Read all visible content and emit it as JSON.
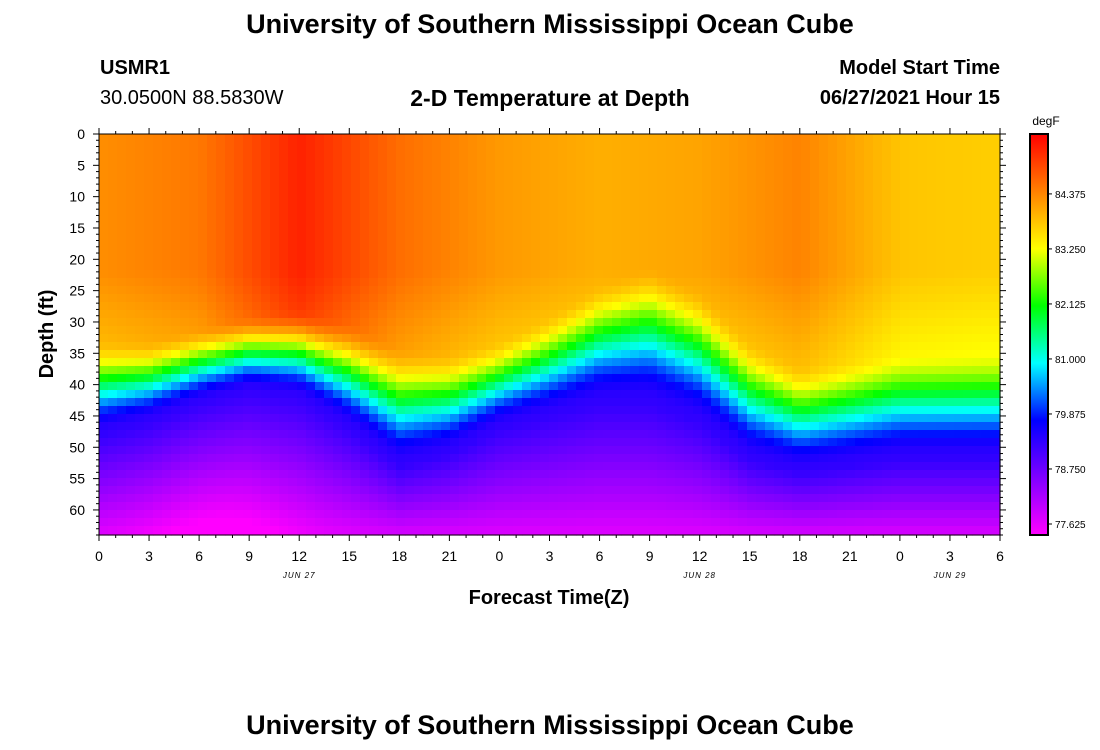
{
  "header": {
    "title": "University of Southern Mississippi Ocean Cube",
    "station": "USMR1",
    "coords": "30.0500N  88.5830W",
    "plot_title": "2-D Temperature at Depth",
    "start_label": "Model Start Time",
    "start_value": "06/27/2021 Hour 15",
    "footer_title": "University of Southern Mississippi Ocean Cube"
  },
  "chart_data": {
    "type": "heatmap",
    "title": "2-D Temperature at Depth",
    "xlabel": "Forecast Time(Z)",
    "ylabel": "Depth (ft)",
    "x_ticks": [
      "0",
      "3",
      "6",
      "9",
      "12",
      "15",
      "18",
      "21",
      "0",
      "3",
      "6",
      "9",
      "12",
      "15",
      "18",
      "21",
      "0",
      "3",
      "6"
    ],
    "x_range_hours": [
      0,
      54
    ],
    "date_labels": [
      {
        "label": "JUN 27",
        "hour": 12
      },
      {
        "label": "JUN 28",
        "hour": 36
      },
      {
        "label": "JUN 29",
        "hour": 51
      }
    ],
    "y_ticks": [
      0,
      5,
      10,
      15,
      20,
      25,
      30,
      35,
      40,
      45,
      50,
      55,
      60
    ],
    "y_range_ft": [
      0,
      64
    ],
    "colorbar": {
      "unit": "degF",
      "ticks": [
        "84.375",
        "83.250",
        "82.125",
        "81.000",
        "79.875",
        "78.750",
        "77.625"
      ],
      "tick_values": [
        84.375,
        83.25,
        82.125,
        81.0,
        79.875,
        78.75,
        77.625
      ],
      "range": [
        77.4,
        85.6
      ],
      "colors": [
        "#ff00ff",
        "#8000ff",
        "#0000ff",
        "#00ffff",
        "#00ff00",
        "#ffff00",
        "#ff8000",
        "#ff0000"
      ]
    },
    "thermocline": {
      "hours": [
        0,
        3,
        6,
        9,
        12,
        15,
        18,
        21,
        24,
        27,
        30,
        33,
        36,
        39,
        42,
        45,
        48,
        51,
        54
      ],
      "warm_bottom_ft": [
        33,
        33,
        31,
        29,
        28,
        30,
        34,
        35,
        33,
        29,
        24,
        21,
        25,
        33,
        37,
        36,
        35,
        35,
        35
      ],
      "cold_top_ft": [
        48,
        46,
        43,
        41,
        42,
        47,
        53,
        51,
        47,
        45,
        43,
        43,
        46,
        52,
        54,
        53,
        52,
        52,
        52
      ]
    },
    "surface_temps_degF": {
      "hours": [
        0,
        6,
        12,
        18,
        24,
        30,
        36,
        42,
        48,
        54
      ],
      "values": [
        84.3,
        84.5,
        85.3,
        84.6,
        84.2,
        84.0,
        84.1,
        84.4,
        83.8,
        83.7
      ]
    },
    "bottom_temp_min_degF": 77.6
  }
}
